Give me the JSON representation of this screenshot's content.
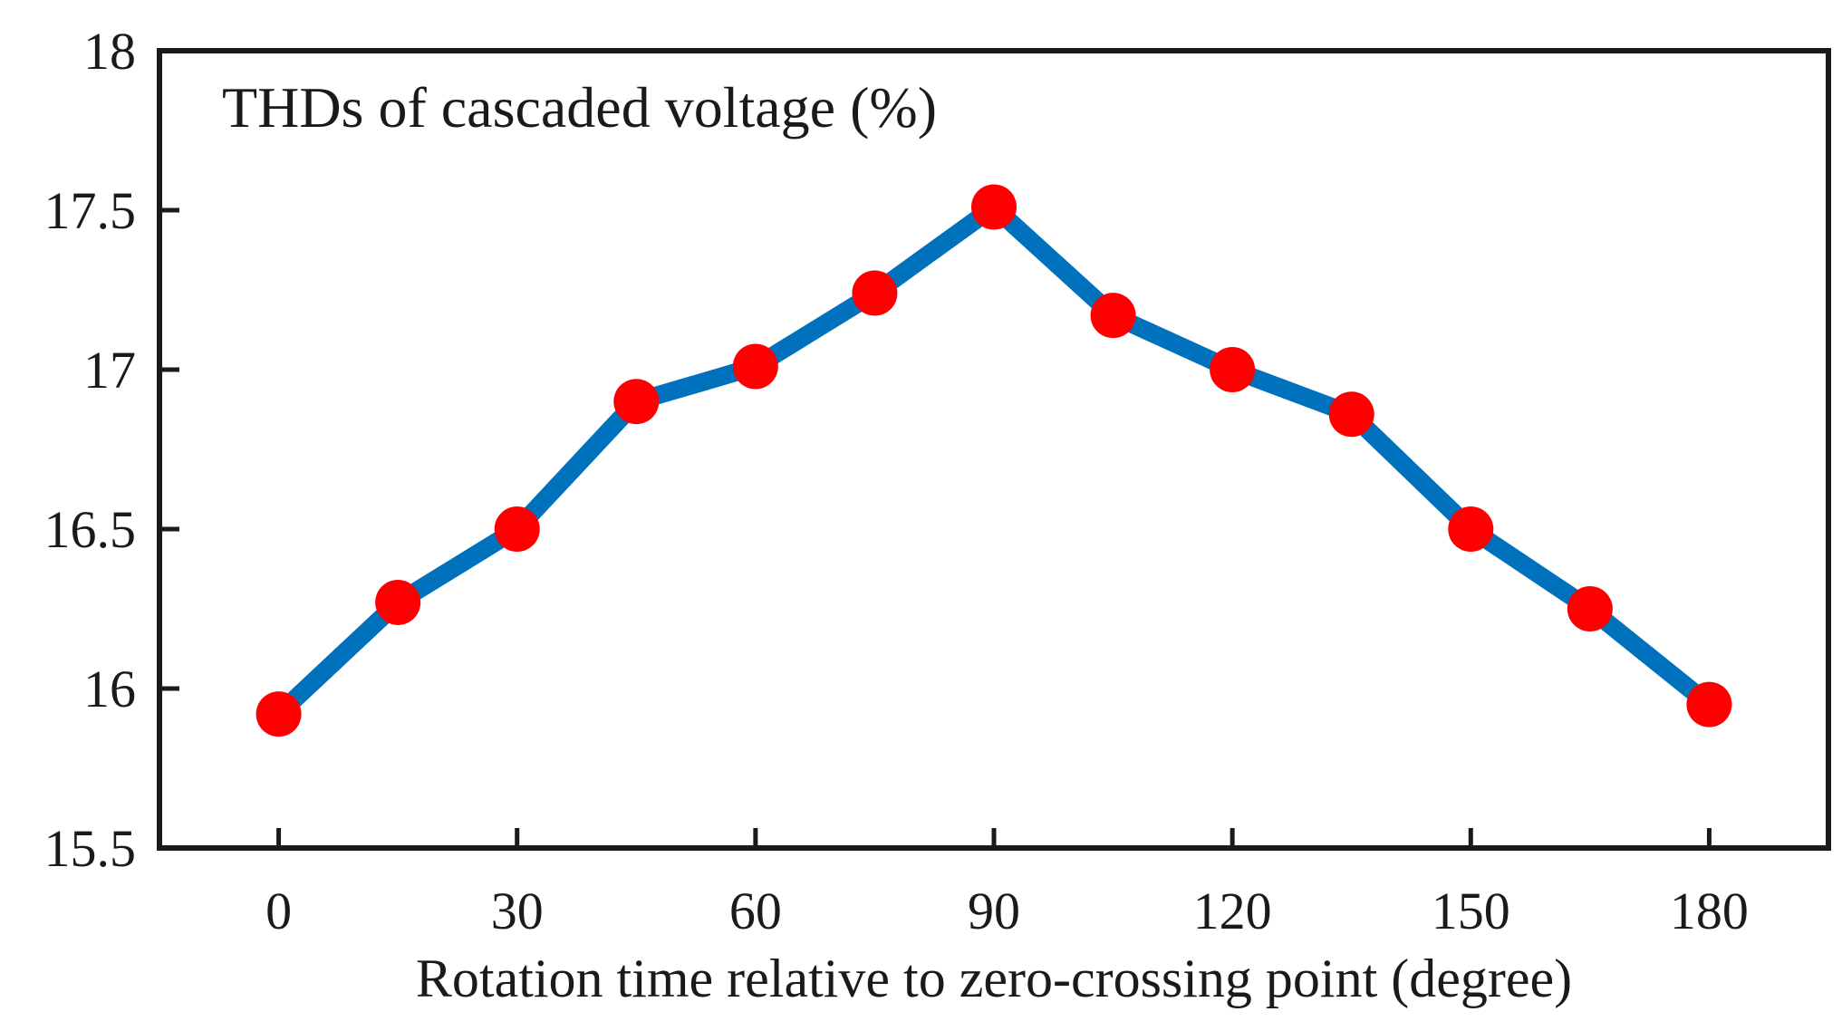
{
  "chart_data": {
    "type": "line",
    "title": "THDs of cascaded voltage (%)",
    "xlabel": "Rotation time relative to zero-crossing point (degree)",
    "ylabel": "",
    "xlim": [
      -15,
      195
    ],
    "ylim": [
      15.5,
      18
    ],
    "x_ticks": [
      0,
      30,
      60,
      90,
      120,
      150,
      180
    ],
    "x_tick_labels": [
      "0",
      "30",
      "60",
      "90",
      "120",
      "150",
      "180"
    ],
    "y_ticks": [
      15.5,
      16,
      16.5,
      17,
      17.5,
      18
    ],
    "y_tick_labels": [
      "15.5",
      "16",
      "16.5",
      "17",
      "17.5",
      "18"
    ],
    "grid": false,
    "series": [
      {
        "name": "THD",
        "line_color": "#0072BD",
        "marker_color": "#FF0000",
        "x": [
          0,
          15,
          30,
          45,
          60,
          75,
          90,
          105,
          120,
          135,
          150,
          165,
          180
        ],
        "y": [
          15.92,
          16.27,
          16.5,
          16.9,
          17.01,
          17.24,
          17.51,
          17.17,
          17.0,
          16.86,
          16.5,
          16.25,
          15.95
        ]
      }
    ]
  }
}
